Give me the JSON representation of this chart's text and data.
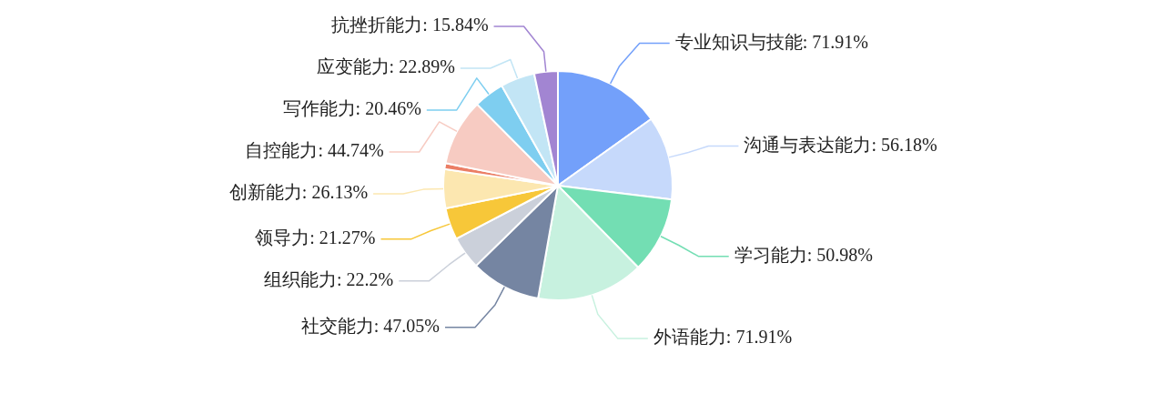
{
  "chart_data": {
    "type": "pie",
    "categories": [
      "专业知识与技能",
      "沟通与表达能力",
      "学习能力",
      "外语能力",
      "社交能力",
      "组织能力",
      "领导力",
      "创新能力",
      null,
      "自控能力",
      "写作能力",
      "应变能力",
      "抗挫折能力"
    ],
    "values": [
      71.91,
      56.18,
      50.98,
      71.91,
      47.05,
      22.2,
      21.27,
      26.13,
      4,
      44.74,
      20.46,
      22.89,
      15.84
    ],
    "value_labels": [
      "71.91%",
      "56.18%",
      "50.98%",
      "71.91%",
      "47.05%",
      "22.2%",
      "21.27%",
      "26.13%",
      null,
      "44.74%",
      "20.46%",
      "22.89%",
      "15.84%"
    ],
    "colors": [
      "#73a0fa",
      "#c6d9fb",
      "#73deb3",
      "#c7f1df",
      "#7585a2",
      "#cbd0da",
      "#f7c739",
      "#fce7b0",
      "#eb7e65",
      "#f7cbc2",
      "#7ecef0",
      "#c2e5f5",
      "#a285d2"
    ],
    "legend": false
  }
}
